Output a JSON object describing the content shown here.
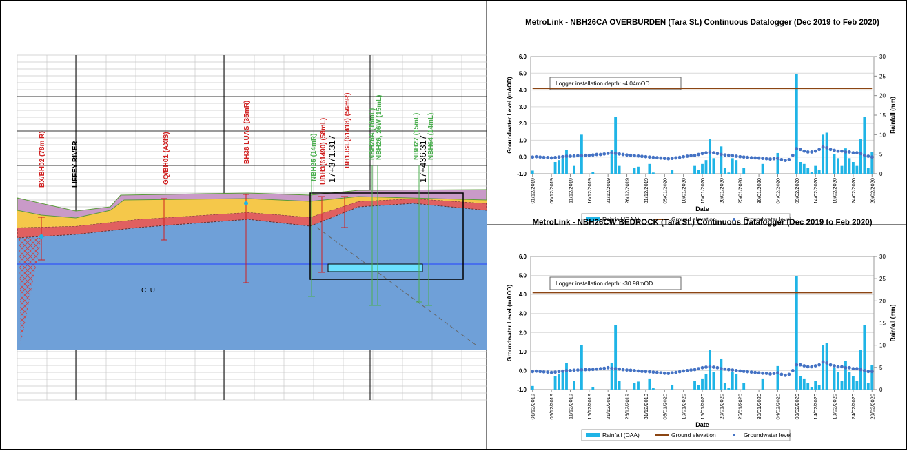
{
  "cross_section": {
    "labels": [
      "BX/BH02 (78m R)",
      "LIFFEY RIVER",
      "GQ/BH01 (AXIS)",
      "BH38 LUAS (35mR)",
      "NBH25 (14mR)",
      "UBH3(61490) (58mL)",
      "17+371.317",
      "BH1.ISL(61418) (56mR)",
      "NBH26A (16mL)",
      "NBH26, 26W (15mL)",
      "NBH27 (15mL)",
      "17+436.317",
      "NBH64 (14mL)",
      "CLU"
    ]
  },
  "chart_data": [
    {
      "type": "combo",
      "title": "MetroLink - NBH26CA OVERBURDEN (Tara St.) Continuous Datalogger (Dec 2019 to Feb 2020)",
      "annotation": "Logger installation depth: -4.04mOD",
      "x_label": "Date",
      "y_label": "Groundwater Level (mAOD)",
      "y2_label": "Rainfall (mm)",
      "categories": [
        "01/12/2019",
        null,
        null,
        null,
        null,
        "06/12/2019",
        null,
        null,
        null,
        null,
        "11/12/2019",
        null,
        null,
        null,
        null,
        "16/12/2019",
        null,
        null,
        null,
        null,
        "21/12/2019",
        null,
        null,
        null,
        null,
        "26/12/2019",
        null,
        null,
        null,
        null,
        "31/12/2019",
        null,
        null,
        null,
        null,
        "05/01/2020",
        null,
        null,
        null,
        null,
        "10/01/2020",
        null,
        null,
        null,
        null,
        "15/01/2020",
        null,
        null,
        null,
        null,
        "20/01/2020",
        null,
        null,
        null,
        null,
        "25/01/2020",
        null,
        null,
        null,
        null,
        "30/01/2020",
        null,
        null,
        null,
        null,
        "04/02/2020",
        null,
        null,
        null,
        null,
        "09/02/2020",
        null,
        null,
        null,
        null,
        "14/02/2020",
        null,
        null,
        null,
        null,
        "19/02/2020",
        null,
        null,
        null,
        null,
        "24/02/2020",
        null,
        null,
        null,
        null,
        "29/02/2020"
      ],
      "ylim": [
        -1,
        6
      ],
      "yticks": [
        {
          "value": -1,
          "label": "-1.0"
        },
        {
          "value": 0,
          "label": "0.0"
        },
        {
          "value": 1,
          "label": "1.0"
        },
        {
          "value": 2,
          "label": "2.0"
        },
        {
          "value": 3,
          "label": "3.0"
        },
        {
          "value": 4,
          "label": "4.0"
        },
        {
          "value": 5,
          "label": "5.0"
        },
        {
          "value": 6,
          "label": "6.0"
        }
      ],
      "y2lim": [
        0,
        30
      ],
      "y2ticks": [
        0,
        5,
        10,
        15,
        20,
        25,
        30
      ],
      "grid": true,
      "legend": "bottom",
      "series": [
        {
          "name": "Rainfall (DAA)",
          "type": "bar",
          "axis": "y2",
          "color": "#1fb4e6",
          "values": [
            0.8,
            0,
            0,
            0,
            0,
            0,
            3,
            3.5,
            4,
            6,
            0,
            2,
            0,
            10,
            0,
            0,
            0.5,
            0,
            0,
            0,
            0,
            6,
            14.5,
            2,
            0,
            0,
            0,
            1.5,
            1.8,
            0,
            0,
            2.5,
            0.3,
            0,
            0,
            0,
            0,
            1,
            0,
            0,
            0,
            0,
            0,
            2,
            1,
            2.5,
            3.5,
            9,
            4,
            0,
            7,
            1.5,
            0.3,
            4,
            3.5,
            0,
            1.5,
            0,
            0,
            0,
            0,
            2.5,
            0,
            0,
            0,
            5.3,
            0,
            0,
            0,
            0,
            25.5,
            3,
            2.5,
            1.5,
            0.5,
            2,
            1,
            10,
            10.5,
            0,
            5,
            4,
            2,
            6.5,
            4,
            3,
            2,
            9,
            14.5,
            1.5,
            5.5
          ]
        },
        {
          "name": "Ground elevation",
          "type": "line",
          "axis": "y",
          "color": "#8b4513",
          "values": [
            4.1,
            4.1,
            4.1,
            4.1,
            4.1,
            4.1,
            4.1,
            4.1,
            4.1,
            4.1,
            4.1,
            4.1,
            4.1,
            4.1,
            4.1,
            4.1,
            4.1,
            4.1,
            4.1,
            4.1,
            4.1,
            4.1,
            4.1,
            4.1,
            4.1,
            4.1,
            4.1,
            4.1,
            4.1,
            4.1,
            4.1,
            4.1,
            4.1,
            4.1,
            4.1,
            4.1,
            4.1,
            4.1,
            4.1,
            4.1,
            4.1,
            4.1,
            4.1,
            4.1,
            4.1,
            4.1,
            4.1,
            4.1,
            4.1,
            4.1,
            4.1,
            4.1,
            4.1,
            4.1,
            4.1,
            4.1,
            4.1,
            4.1,
            4.1,
            4.1,
            4.1,
            4.1,
            4.1,
            4.1,
            4.1,
            4.1,
            4.1,
            4.1,
            4.1,
            4.1,
            4.1,
            4.1,
            4.1,
            4.1,
            4.1,
            4.1,
            4.1,
            4.1,
            4.1,
            4.1,
            4.1,
            4.1,
            4.1,
            4.1,
            4.1,
            4.1,
            4.1,
            4.1,
            4.1,
            4.1,
            4.1
          ]
        },
        {
          "name": "Groundwater level",
          "type": "scatter",
          "axis": "y",
          "color": "#4472c4",
          "values": [
            0.0,
            0.02,
            0.0,
            -0.02,
            -0.03,
            -0.05,
            -0.03,
            0.0,
            0.02,
            0.05,
            0.05,
            0.06,
            0.08,
            0.08,
            0.1,
            0.1,
            0.12,
            0.15,
            0.15,
            0.18,
            0.22,
            0.25,
            0.22,
            0.18,
            0.15,
            0.12,
            0.1,
            0.08,
            0.06,
            0.04,
            0.02,
            0.0,
            -0.02,
            -0.04,
            -0.06,
            -0.08,
            -0.1,
            -0.08,
            -0.05,
            -0.02,
            0.02,
            0.05,
            0.08,
            0.1,
            0.15,
            0.2,
            0.25,
            0.28,
            0.25,
            0.2,
            0.15,
            0.12,
            0.1,
            0.08,
            0.05,
            0.02,
            0.0,
            -0.02,
            -0.04,
            -0.05,
            -0.06,
            -0.08,
            -0.1,
            -0.12,
            -0.1,
            -0.08,
            -0.15,
            -0.2,
            -0.15,
            0.1,
            0.5,
            0.45,
            0.35,
            0.3,
            0.3,
            0.35,
            0.45,
            0.6,
            0.55,
            0.45,
            0.4,
            0.35,
            0.35,
            0.3,
            0.3,
            0.25,
            0.25,
            0.2,
            0.1,
            0.05,
            0.0
          ]
        }
      ]
    },
    {
      "type": "combo",
      "title": "MetroLink - NBH26CW BEDROCK (Tara St.) Continuous Datalogger (Dec 2019 to Feb 2020)",
      "annotation": "Logger installation depth: -30.98mOD",
      "x_label": "Date",
      "y_label": "Groundwater Level (mAOD)",
      "y2_label": "Rainfall (mm)",
      "categories": [
        "01/12/2019",
        null,
        null,
        null,
        null,
        "06/12/2019",
        null,
        null,
        null,
        null,
        "11/12/2019",
        null,
        null,
        null,
        null,
        "16/12/2019",
        null,
        null,
        null,
        null,
        "21/12/2019",
        null,
        null,
        null,
        null,
        "26/12/2019",
        null,
        null,
        null,
        null,
        "31/12/2019",
        null,
        null,
        null,
        null,
        "05/01/2020",
        null,
        null,
        null,
        null,
        "10/01/2020",
        null,
        null,
        null,
        null,
        "15/01/2020",
        null,
        null,
        null,
        null,
        "20/01/2020",
        null,
        null,
        null,
        null,
        "25/01/2020",
        null,
        null,
        null,
        null,
        "30/01/2020",
        null,
        null,
        null,
        null,
        "04/02/2020",
        null,
        null,
        null,
        null,
        "09/02/2020",
        null,
        null,
        null,
        null,
        "14/02/2020",
        null,
        null,
        null,
        null,
        "19/02/2020",
        null,
        null,
        null,
        null,
        "24/02/2020",
        null,
        null,
        null,
        null,
        "29/02/2020"
      ],
      "ylim": [
        -1,
        6
      ],
      "yticks": [
        {
          "value": -1,
          "label": "-1.0"
        },
        {
          "value": 0,
          "label": "0.0"
        },
        {
          "value": 1,
          "label": "1.0"
        },
        {
          "value": 2,
          "label": "2.0"
        },
        {
          "value": 3,
          "label": "3.0"
        },
        {
          "value": 4,
          "label": "4.0"
        },
        {
          "value": 5,
          "label": "5.0"
        },
        {
          "value": 6,
          "label": "6.0"
        }
      ],
      "y2lim": [
        0,
        30
      ],
      "y2ticks": [
        0,
        5,
        10,
        15,
        20,
        25,
        30
      ],
      "grid": true,
      "legend": "bottom",
      "series": [
        {
          "name": "Rainfall (DAA)",
          "type": "bar",
          "axis": "y2",
          "color": "#1fb4e6",
          "values": [
            0.8,
            0,
            0,
            0,
            0,
            0,
            3,
            3.5,
            4,
            6,
            0,
            2,
            0,
            10,
            0,
            0,
            0.5,
            0,
            0,
            0,
            0,
            6,
            14.5,
            2,
            0,
            0,
            0,
            1.5,
            1.8,
            0,
            0,
            2.5,
            0.3,
            0,
            0,
            0,
            0,
            1,
            0,
            0,
            0,
            0,
            0,
            2,
            1,
            2.5,
            3.5,
            9,
            4,
            0,
            7,
            1.5,
            0.3,
            4,
            3.5,
            0,
            1.5,
            0,
            0,
            0,
            0,
            2.5,
            0,
            0,
            0,
            5.3,
            0,
            0,
            0,
            0,
            25.5,
            3,
            2.5,
            1.5,
            0.5,
            2,
            1,
            10,
            10.5,
            0,
            5,
            4,
            2,
            6.5,
            4,
            3,
            2,
            9,
            14.5,
            1.5,
            5.5
          ]
        },
        {
          "name": "Ground elevation",
          "type": "line",
          "axis": "y",
          "color": "#8b4513",
          "values": [
            4.1,
            4.1,
            4.1,
            4.1,
            4.1,
            4.1,
            4.1,
            4.1,
            4.1,
            4.1,
            4.1,
            4.1,
            4.1,
            4.1,
            4.1,
            4.1,
            4.1,
            4.1,
            4.1,
            4.1,
            4.1,
            4.1,
            4.1,
            4.1,
            4.1,
            4.1,
            4.1,
            4.1,
            4.1,
            4.1,
            4.1,
            4.1,
            4.1,
            4.1,
            4.1,
            4.1,
            4.1,
            4.1,
            4.1,
            4.1,
            4.1,
            4.1,
            4.1,
            4.1,
            4.1,
            4.1,
            4.1,
            4.1,
            4.1,
            4.1,
            4.1,
            4.1,
            4.1,
            4.1,
            4.1,
            4.1,
            4.1,
            4.1,
            4.1,
            4.1,
            4.1,
            4.1,
            4.1,
            4.1,
            4.1,
            4.1,
            4.1,
            4.1,
            4.1,
            4.1,
            4.1,
            4.1,
            4.1,
            4.1,
            4.1,
            4.1,
            4.1,
            4.1,
            4.1,
            4.1,
            4.1,
            4.1,
            4.1,
            4.1,
            4.1,
            4.1,
            4.1,
            4.1,
            4.1,
            4.1,
            4.1
          ]
        },
        {
          "name": "Groundwater level",
          "type": "scatter",
          "axis": "y",
          "color": "#4472c4",
          "values": [
            -0.05,
            -0.03,
            -0.05,
            -0.07,
            -0.08,
            -0.1,
            -0.08,
            -0.05,
            -0.03,
            0.0,
            0.0,
            0.02,
            0.03,
            0.04,
            0.05,
            0.05,
            0.06,
            0.08,
            0.1,
            0.12,
            0.15,
            0.12,
            0.1,
            0.08,
            0.05,
            0.03,
            0.02,
            0.0,
            -0.02,
            -0.04,
            -0.05,
            -0.06,
            -0.08,
            -0.1,
            -0.12,
            -0.14,
            -0.15,
            -0.12,
            -0.1,
            -0.06,
            -0.02,
            0.0,
            0.03,
            0.05,
            0.1,
            0.15,
            0.18,
            0.2,
            0.18,
            0.15,
            0.1,
            0.08,
            0.05,
            0.03,
            0.0,
            -0.02,
            -0.04,
            -0.06,
            -0.08,
            -0.1,
            -0.12,
            -0.14,
            -0.15,
            -0.18,
            -0.15,
            -0.12,
            -0.2,
            -0.25,
            -0.2,
            0.0,
            0.3,
            0.3,
            0.25,
            0.2,
            0.2,
            0.25,
            0.3,
            0.45,
            0.4,
            0.3,
            0.25,
            0.2,
            0.2,
            0.15,
            0.15,
            0.1,
            0.1,
            0.05,
            0.0,
            -0.05,
            -0.05
          ]
        }
      ]
    }
  ]
}
